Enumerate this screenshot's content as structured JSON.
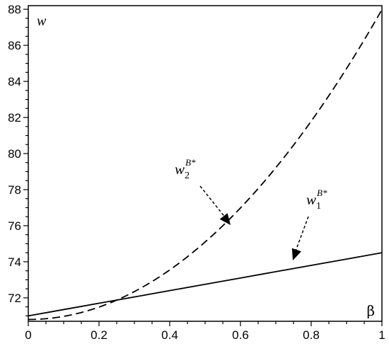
{
  "chart_data": {
    "type": "line",
    "title": "",
    "xlabel": "β",
    "ylabel": "w",
    "xlim": [
      0,
      1
    ],
    "ylim": [
      70.7,
      88.2
    ],
    "grid": false,
    "x_ticks": [
      "0",
      "0.2",
      "0.4",
      "0.6",
      "0.8",
      "1"
    ],
    "y_ticks": [
      "72",
      "74",
      "76",
      "78",
      "80",
      "82",
      "84",
      "86",
      "88"
    ],
    "series": [
      {
        "name": "w1B*",
        "style": "solid",
        "x": [
          0,
          0.1,
          0.2,
          0.3,
          0.4,
          0.5,
          0.6,
          0.7,
          0.8,
          0.9,
          1
        ],
        "y": [
          71.0,
          71.35,
          71.7,
          72.05,
          72.4,
          72.75,
          73.1,
          73.45,
          73.8,
          74.15,
          74.5
        ]
      },
      {
        "name": "w2B*",
        "style": "dashed",
        "x": [
          0,
          0.1,
          0.2,
          0.3,
          0.4,
          0.5,
          0.6,
          0.7,
          0.8,
          0.9,
          1
        ],
        "y": [
          70.8,
          70.97,
          71.49,
          72.35,
          73.55,
          75.1,
          76.99,
          79.22,
          81.8,
          84.72,
          87.98
        ]
      }
    ],
    "annotations": [
      {
        "text": "w",
        "sub": "2",
        "sup": "B*",
        "points_to": "w2B*"
      },
      {
        "text": "w",
        "sub": "1",
        "sup": "B*",
        "points_to": "w1B*"
      }
    ],
    "colors": {
      "axis": "#000000",
      "line": "#000000"
    }
  }
}
